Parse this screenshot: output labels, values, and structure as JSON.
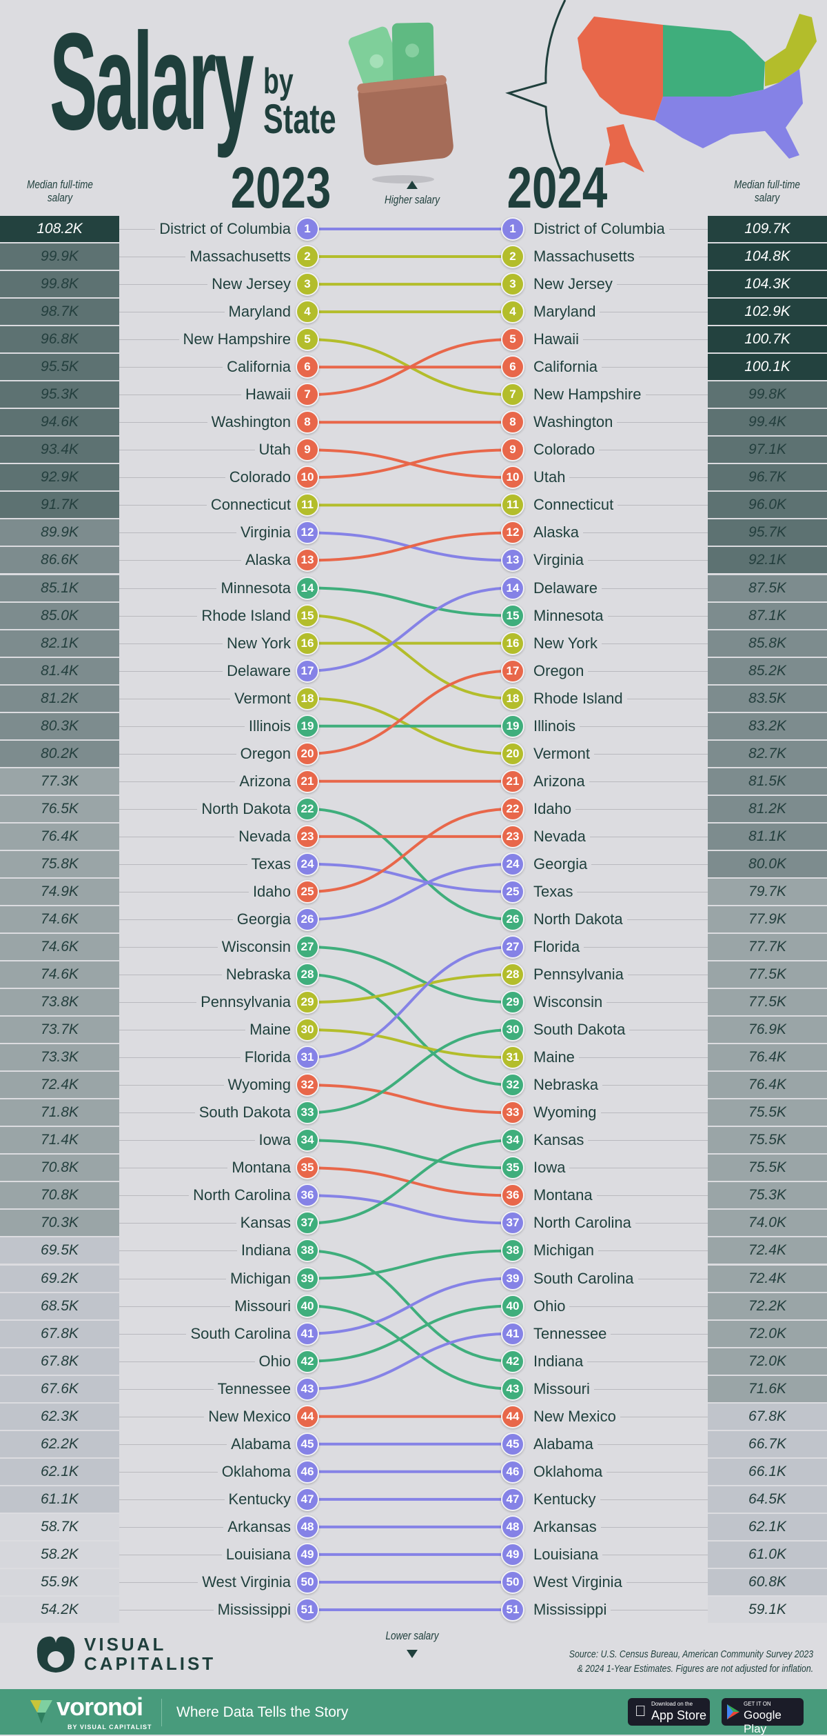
{
  "header": {
    "title_main": "Salary",
    "title_by": "by",
    "title_state": "State",
    "year_left": "2023",
    "year_right": "2024",
    "col_label_left": "Median full-time salary",
    "col_label_right": "Median full-time salary",
    "higher_label": "Higher salary",
    "lower_label": "Lower salary"
  },
  "colors": {
    "regions": {
      "West": "#e8674a",
      "Midwest": "#3fae7c",
      "Northeast": "#b3bd2b",
      "South": "#8582e6"
    },
    "tiers": [
      {
        "min": 100,
        "bg": "#23423f",
        "text": "#ffffff"
      },
      {
        "min": 90,
        "bg": "#5d7272",
        "text": "#243f3e"
      },
      {
        "min": 80,
        "bg": "#7d8c8e",
        "text": "#243f3e"
      },
      {
        "min": 70,
        "bg": "#9aa5a7",
        "text": "#243f3e"
      },
      {
        "min": 60,
        "bg": "#c0c4cb",
        "text": "#243f3e"
      },
      {
        "min": 0,
        "bg": "#d6d7dc",
        "text": "#243f3e"
      }
    ]
  },
  "chart_data": {
    "type": "bump",
    "series_left_label": "2023",
    "series_right_label": "2024",
    "value_label": "Median full-time salary",
    "rank_2023": [
      [
        "District of Columbia",
        "108.2K",
        "South"
      ],
      [
        "Massachusetts",
        "99.9K",
        "Northeast"
      ],
      [
        "New Jersey",
        "99.8K",
        "Northeast"
      ],
      [
        "Maryland",
        "98.7K",
        "Northeast"
      ],
      [
        "New Hampshire",
        "96.8K",
        "Northeast"
      ],
      [
        "California",
        "95.5K",
        "West"
      ],
      [
        "Hawaii",
        "95.3K",
        "West"
      ],
      [
        "Washington",
        "94.6K",
        "West"
      ],
      [
        "Utah",
        "93.4K",
        "West"
      ],
      [
        "Colorado",
        "92.9K",
        "West"
      ],
      [
        "Connecticut",
        "91.7K",
        "Northeast"
      ],
      [
        "Virginia",
        "89.9K",
        "South"
      ],
      [
        "Alaska",
        "86.6K",
        "West"
      ],
      [
        "Minnesota",
        "85.1K",
        "Midwest"
      ],
      [
        "Rhode Island",
        "85.0K",
        "Northeast"
      ],
      [
        "New York",
        "82.1K",
        "Northeast"
      ],
      [
        "Delaware",
        "81.4K",
        "South"
      ],
      [
        "Vermont",
        "81.2K",
        "Northeast"
      ],
      [
        "Illinois",
        "80.3K",
        "Midwest"
      ],
      [
        "Oregon",
        "80.2K",
        "West"
      ],
      [
        "Arizona",
        "77.3K",
        "West"
      ],
      [
        "North Dakota",
        "76.5K",
        "Midwest"
      ],
      [
        "Nevada",
        "76.4K",
        "West"
      ],
      [
        "Texas",
        "75.8K",
        "South"
      ],
      [
        "Idaho",
        "74.9K",
        "West"
      ],
      [
        "Georgia",
        "74.6K",
        "South"
      ],
      [
        "Wisconsin",
        "74.6K",
        "Midwest"
      ],
      [
        "Nebraska",
        "74.6K",
        "Midwest"
      ],
      [
        "Pennsylvania",
        "73.8K",
        "Northeast"
      ],
      [
        "Maine",
        "73.7K",
        "Northeast"
      ],
      [
        "Florida",
        "73.3K",
        "South"
      ],
      [
        "Wyoming",
        "72.4K",
        "West"
      ],
      [
        "South Dakota",
        "71.8K",
        "Midwest"
      ],
      [
        "Iowa",
        "71.4K",
        "Midwest"
      ],
      [
        "Montana",
        "70.8K",
        "West"
      ],
      [
        "North Carolina",
        "70.8K",
        "South"
      ],
      [
        "Kansas",
        "70.3K",
        "Midwest"
      ],
      [
        "Indiana",
        "69.5K",
        "Midwest"
      ],
      [
        "Michigan",
        "69.2K",
        "Midwest"
      ],
      [
        "Missouri",
        "68.5K",
        "Midwest"
      ],
      [
        "South Carolina",
        "67.8K",
        "South"
      ],
      [
        "Ohio",
        "67.8K",
        "Midwest"
      ],
      [
        "Tennessee",
        "67.6K",
        "South"
      ],
      [
        "New Mexico",
        "62.3K",
        "West"
      ],
      [
        "Alabama",
        "62.2K",
        "South"
      ],
      [
        "Oklahoma",
        "62.1K",
        "South"
      ],
      [
        "Kentucky",
        "61.1K",
        "South"
      ],
      [
        "Arkansas",
        "58.7K",
        "South"
      ],
      [
        "Louisiana",
        "58.2K",
        "South"
      ],
      [
        "West Virginia",
        "55.9K",
        "South"
      ],
      [
        "Mississippi",
        "54.2K",
        "South"
      ]
    ],
    "rank_2024": [
      [
        "District of Columbia",
        "109.7K",
        "South"
      ],
      [
        "Massachusetts",
        "104.8K",
        "Northeast"
      ],
      [
        "New Jersey",
        "104.3K",
        "Northeast"
      ],
      [
        "Maryland",
        "102.9K",
        "Northeast"
      ],
      [
        "Hawaii",
        "100.7K",
        "West"
      ],
      [
        "California",
        "100.1K",
        "West"
      ],
      [
        "New Hampshire",
        "99.8K",
        "Northeast"
      ],
      [
        "Washington",
        "99.4K",
        "West"
      ],
      [
        "Colorado",
        "97.1K",
        "West"
      ],
      [
        "Utah",
        "96.7K",
        "West"
      ],
      [
        "Connecticut",
        "96.0K",
        "Northeast"
      ],
      [
        "Alaska",
        "95.7K",
        "West"
      ],
      [
        "Virginia",
        "92.1K",
        "South"
      ],
      [
        "Delaware",
        "87.5K",
        "South"
      ],
      [
        "Minnesota",
        "87.1K",
        "Midwest"
      ],
      [
        "New York",
        "85.8K",
        "Northeast"
      ],
      [
        "Oregon",
        "85.2K",
        "West"
      ],
      [
        "Rhode Island",
        "83.5K",
        "Northeast"
      ],
      [
        "Illinois",
        "83.2K",
        "Midwest"
      ],
      [
        "Vermont",
        "82.7K",
        "Northeast"
      ],
      [
        "Arizona",
        "81.5K",
        "West"
      ],
      [
        "Idaho",
        "81.2K",
        "West"
      ],
      [
        "Nevada",
        "81.1K",
        "West"
      ],
      [
        "Georgia",
        "80.0K",
        "South"
      ],
      [
        "Texas",
        "79.7K",
        "South"
      ],
      [
        "North Dakota",
        "77.9K",
        "Midwest"
      ],
      [
        "Florida",
        "77.7K",
        "South"
      ],
      [
        "Pennsylvania",
        "77.5K",
        "Northeast"
      ],
      [
        "Wisconsin",
        "77.5K",
        "Midwest"
      ],
      [
        "South Dakota",
        "76.9K",
        "Midwest"
      ],
      [
        "Maine",
        "76.4K",
        "Northeast"
      ],
      [
        "Nebraska",
        "76.4K",
        "Midwest"
      ],
      [
        "Wyoming",
        "75.5K",
        "West"
      ],
      [
        "Kansas",
        "75.5K",
        "Midwest"
      ],
      [
        "Iowa",
        "75.5K",
        "Midwest"
      ],
      [
        "Montana",
        "75.3K",
        "West"
      ],
      [
        "North Carolina",
        "74.0K",
        "South"
      ],
      [
        "Michigan",
        "72.4K",
        "Midwest"
      ],
      [
        "South Carolina",
        "72.4K",
        "South"
      ],
      [
        "Ohio",
        "72.2K",
        "Midwest"
      ],
      [
        "Tennessee",
        "72.0K",
        "South"
      ],
      [
        "Indiana",
        "72.0K",
        "Midwest"
      ],
      [
        "Missouri",
        "71.6K",
        "Midwest"
      ],
      [
        "New Mexico",
        "67.8K",
        "West"
      ],
      [
        "Alabama",
        "66.7K",
        "South"
      ],
      [
        "Oklahoma",
        "66.1K",
        "South"
      ],
      [
        "Kentucky",
        "64.5K",
        "South"
      ],
      [
        "Arkansas",
        "62.1K",
        "South"
      ],
      [
        "Louisiana",
        "61.0K",
        "South"
      ],
      [
        "West Virginia",
        "60.8K",
        "South"
      ],
      [
        "Mississippi",
        "59.1K",
        "South"
      ]
    ]
  },
  "footer": {
    "brand_top": "VISUAL",
    "brand_bottom": "CAPITALIST",
    "source_line1": "Source: U.S. Census Bureau, American Community Survey 2023",
    "source_line2": "& 2024 1-Year Estimates. Figures are not adjusted for inflation.",
    "voronoi": "voronoi",
    "voronoi_sub": "BY VISUAL CAPITALIST",
    "tagline": "Where Data Tells the Story",
    "appstore_small": "Download on the",
    "appstore_big": "App Store",
    "gplay_small": "GET IT ON",
    "gplay_big": "Google Play"
  }
}
